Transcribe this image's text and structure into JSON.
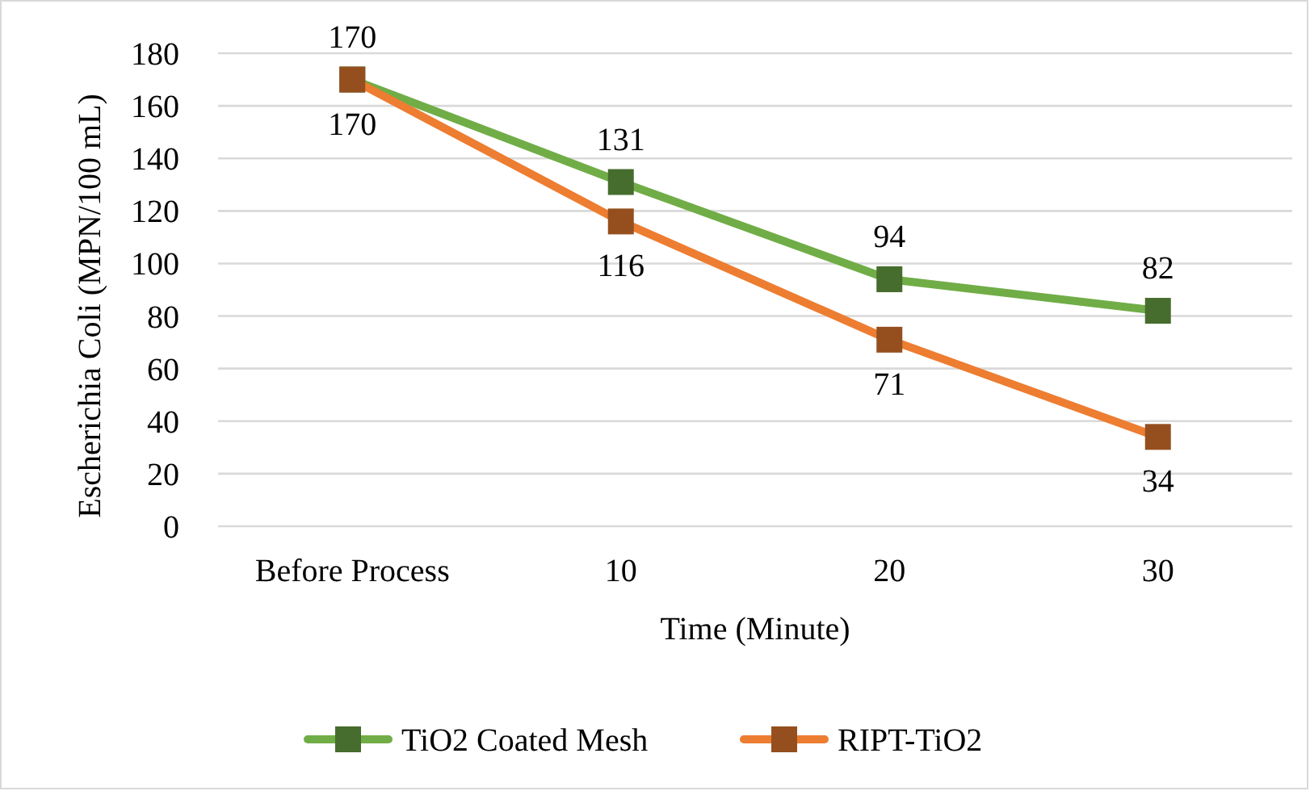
{
  "chart_data": {
    "type": "line",
    "xlabel": "Time (Minute)",
    "ylabel": "Escherichia Coli (MPN/100 mL)",
    "categories": [
      "Before Process",
      "10",
      "20",
      "30"
    ],
    "series": [
      {
        "name": "TiO2 Coated Mesh",
        "color": "#70ad47",
        "values": [
          170,
          131,
          94,
          82
        ]
      },
      {
        "name": "RIPT-TiO2",
        "color": "#ed7d31",
        "values": [
          170,
          116,
          71,
          34
        ]
      }
    ],
    "ylim": [
      0,
      180
    ],
    "yticks": [
      0,
      20,
      40,
      60,
      80,
      100,
      120,
      140,
      160,
      180
    ],
    "grid": "y",
    "legend": "bottom",
    "marker": "square",
    "line_style": "solid",
    "data_labels": true
  }
}
